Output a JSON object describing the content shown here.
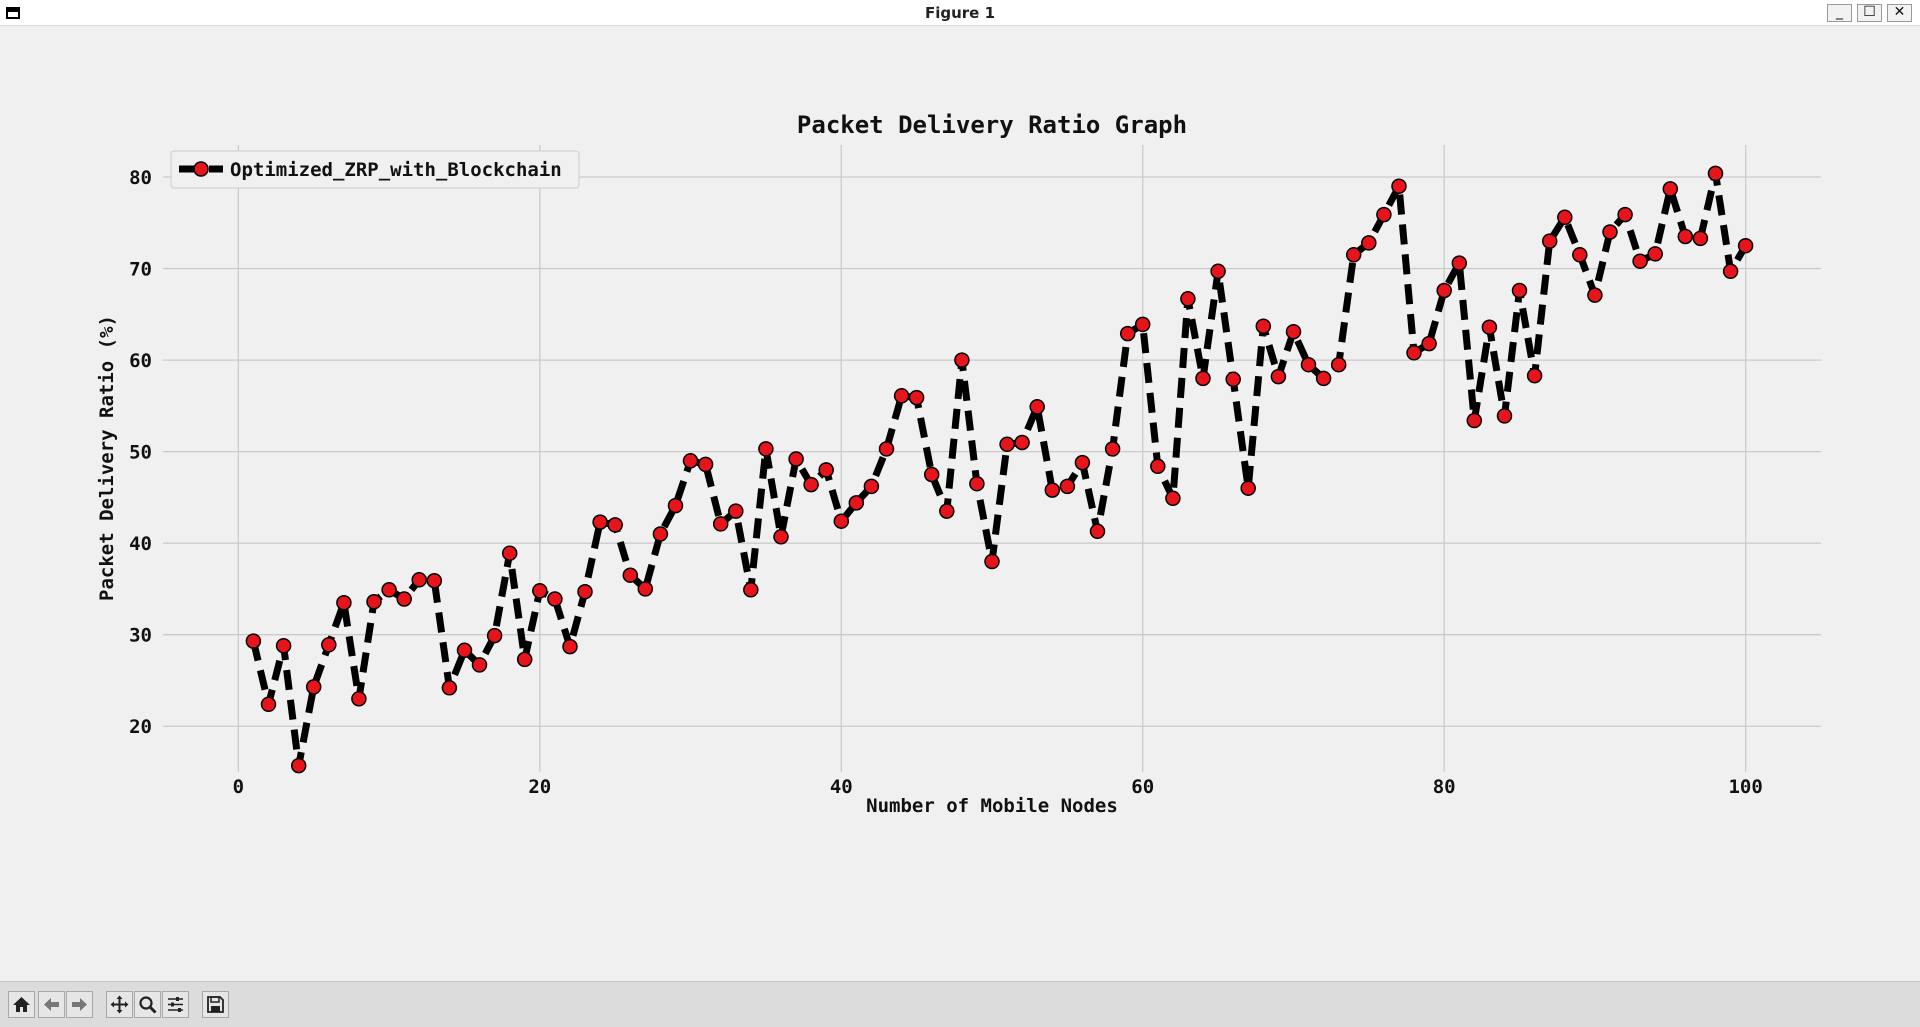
{
  "window": {
    "title": "Figure 1",
    "minimize_label": "_",
    "maximize_label": "☐",
    "close_label": "✕"
  },
  "toolbar": {
    "buttons": [
      {
        "name": "home-icon"
      },
      {
        "name": "back-arrow-icon"
      },
      {
        "name": "forward-arrow-icon"
      },
      {
        "name": "pan-icon"
      },
      {
        "name": "zoom-icon"
      },
      {
        "name": "configure-subplots-icon"
      },
      {
        "name": "save-icon"
      }
    ]
  },
  "chart_data": {
    "type": "line",
    "title": "Packet Delivery Ratio Graph",
    "xlabel": "Number of Mobile Nodes",
    "ylabel": "Packet Delivery Ratio (%)",
    "xlim": [
      -5,
      105
    ],
    "ylim": [
      15,
      83.5
    ],
    "xticks": [
      0,
      20,
      40,
      60,
      80,
      100
    ],
    "yticks": [
      20,
      30,
      40,
      50,
      60,
      70,
      80
    ],
    "grid": true,
    "legend_position": "top-left",
    "line_color": "#000000",
    "line_style": "dashed",
    "marker_color": "#e8141c",
    "x": [
      1,
      2,
      3,
      4,
      5,
      6,
      7,
      8,
      9,
      10,
      11,
      12,
      13,
      14,
      15,
      16,
      17,
      18,
      19,
      20,
      21,
      22,
      23,
      24,
      25,
      26,
      27,
      28,
      29,
      30,
      31,
      32,
      33,
      34,
      35,
      36,
      37,
      38,
      39,
      40,
      41,
      42,
      43,
      44,
      45,
      46,
      47,
      48,
      49,
      50,
      51,
      52,
      53,
      54,
      55,
      56,
      57,
      58,
      59,
      60,
      61,
      62,
      63,
      64,
      65,
      66,
      67,
      68,
      69,
      70,
      71,
      72,
      73,
      74,
      75,
      76,
      77,
      78,
      79,
      80,
      81,
      82,
      83,
      84,
      85,
      86,
      87,
      88,
      89,
      90,
      91,
      92,
      93,
      94,
      95,
      96,
      97,
      98,
      99,
      100
    ],
    "series": [
      {
        "name": "Optimized_ZRP_with_Blockchain",
        "values": [
          29.3,
          22.4,
          28.8,
          15.7,
          24.3,
          28.9,
          33.5,
          23.0,
          33.6,
          34.9,
          33.9,
          36.0,
          35.9,
          24.2,
          28.3,
          26.7,
          29.9,
          38.9,
          27.3,
          34.8,
          33.9,
          28.7,
          34.7,
          42.3,
          42.0,
          36.5,
          35.0,
          41.0,
          44.1,
          49.0,
          48.6,
          42.1,
          43.5,
          34.9,
          50.3,
          40.7,
          49.2,
          46.4,
          48.0,
          42.4,
          44.4,
          46.2,
          50.3,
          56.1,
          55.9,
          47.5,
          43.5,
          60.0,
          46.5,
          38.0,
          50.8,
          51.0,
          54.9,
          45.8,
          46.2,
          48.8,
          41.3,
          50.3,
          62.9,
          63.9,
          48.4,
          44.9,
          66.7,
          58.0,
          69.7,
          57.9,
          46.0,
          63.7,
          58.2,
          63.1,
          59.5,
          58.0,
          59.5,
          71.5,
          72.8,
          75.9,
          79.0,
          60.8,
          61.8,
          67.6,
          70.6,
          53.4,
          63.6,
          53.9,
          67.6,
          58.3,
          73.0,
          75.6,
          71.5,
          67.1,
          74.0,
          75.9,
          70.8,
          71.6,
          78.7,
          73.5,
          73.3,
          80.4,
          69.7,
          72.5
        ]
      }
    ]
  }
}
